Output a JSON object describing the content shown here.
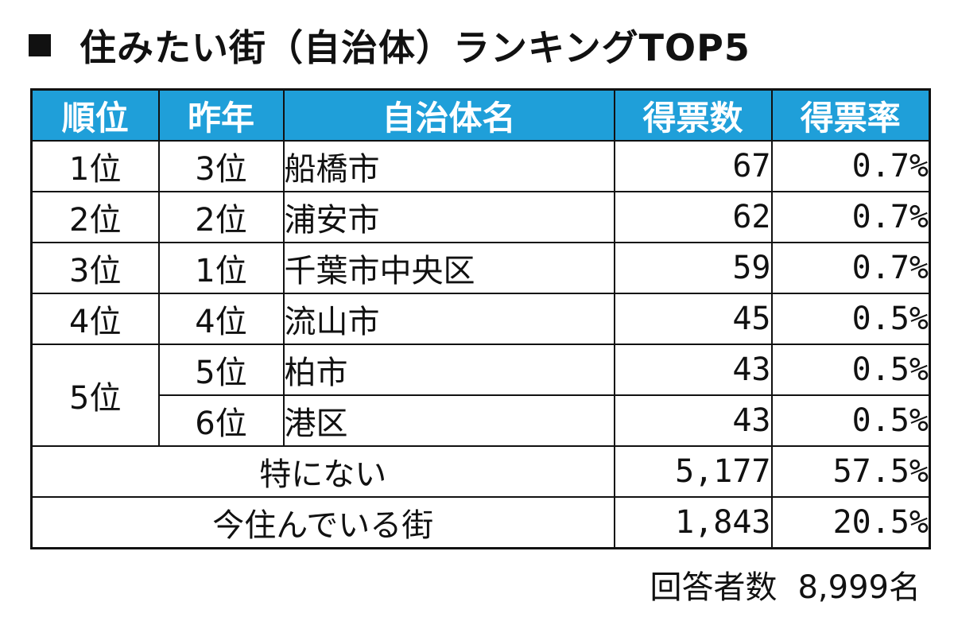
{
  "title": "住みたい街（自治体）ランキングTOP5",
  "colors": {
    "header_bg": "#1f9fd9",
    "header_text": "#ffffff",
    "border": "#111111"
  },
  "table": {
    "headers": [
      "順位",
      "昨年",
      "自治体名",
      "得票数",
      "得票率"
    ],
    "rows": [
      {
        "rank": "1位",
        "last_year": "3位",
        "name": "船橋市",
        "votes": "67",
        "rate": "0.7%"
      },
      {
        "rank": "2位",
        "last_year": "2位",
        "name": "浦安市",
        "votes": "62",
        "rate": "0.7%"
      },
      {
        "rank": "3位",
        "last_year": "1位",
        "name": "千葉市中央区",
        "votes": "59",
        "rate": "0.7%"
      },
      {
        "rank": "4位",
        "last_year": "4位",
        "name": "流山市",
        "votes": "45",
        "rate": "0.5%"
      },
      {
        "rank": "5位",
        "last_year": "5位",
        "name": "柏市",
        "votes": "43",
        "rate": "0.5%"
      },
      {
        "rank": "",
        "last_year": "6位",
        "name": "港区",
        "votes": "43",
        "rate": "0.5%"
      }
    ],
    "summary_rows": [
      {
        "label": "特にない",
        "votes": "5,177",
        "rate": "57.5%"
      },
      {
        "label": "今住んでいる街",
        "votes": "1,843",
        "rate": "20.5%"
      }
    ]
  },
  "footer": {
    "respondents_label": "回答者数",
    "respondents_value": "8,999名"
  }
}
